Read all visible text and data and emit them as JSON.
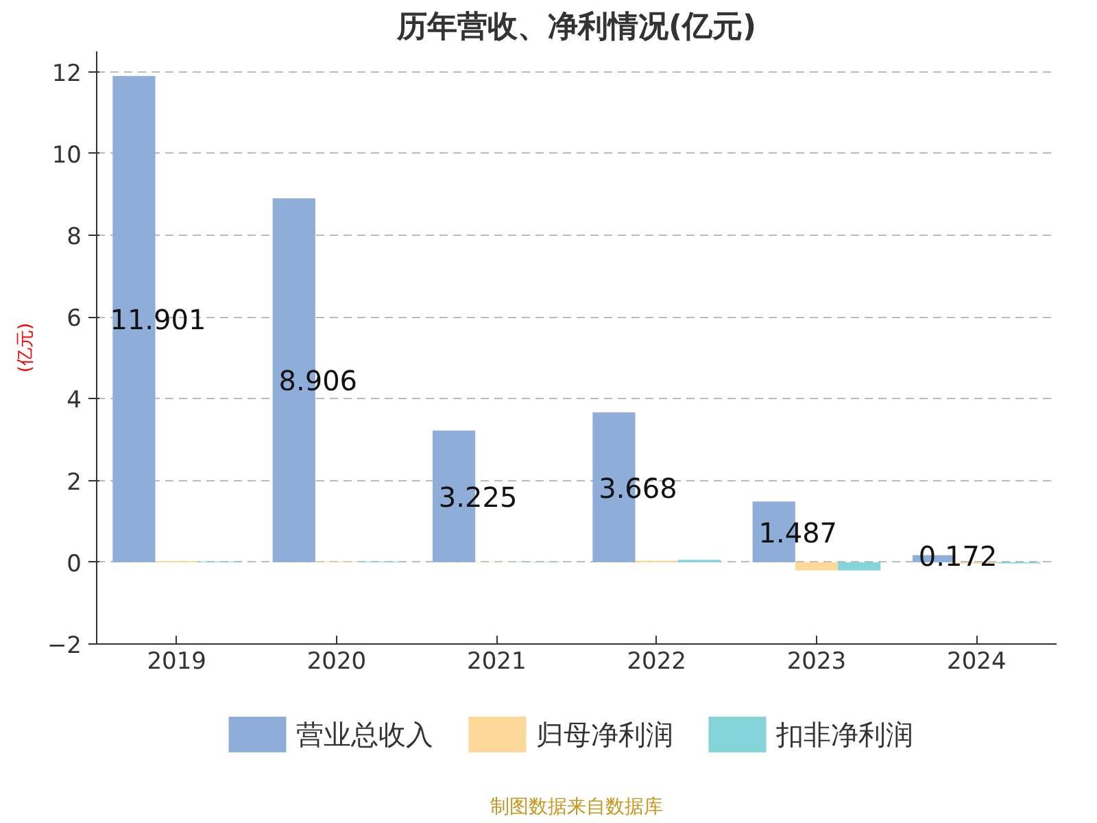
{
  "chart_data": {
    "type": "bar",
    "title": "历年营收、净利情况(亿元)",
    "ylabel": "(亿元)",
    "categories": [
      "2019",
      "2020",
      "2021",
      "2022",
      "2023",
      "2024"
    ],
    "series": [
      {
        "name": "营业总收入",
        "color": "#8eadd9",
        "values": [
          11.901,
          8.906,
          3.225,
          3.668,
          1.487,
          0.172
        ],
        "value_labels": [
          "11.901",
          "8.906",
          "3.225",
          "3.668",
          "1.487",
          "0.172"
        ]
      },
      {
        "name": "归母净利润",
        "color": "#fdd899",
        "values": [
          0.03,
          0.02,
          0.01,
          0.04,
          -0.2,
          -0.03
        ]
      },
      {
        "name": "扣非净利润",
        "color": "#85d4d9",
        "values": [
          0.02,
          0.02,
          0.01,
          0.06,
          -0.2,
          -0.03
        ]
      }
    ],
    "ylim": [
      -2,
      12.5
    ],
    "yticks": [
      -2,
      0,
      2,
      4,
      6,
      8,
      10,
      12
    ],
    "grid": "y",
    "legend": "bottom",
    "annotations": [
      "制图数据来自数据库"
    ]
  }
}
